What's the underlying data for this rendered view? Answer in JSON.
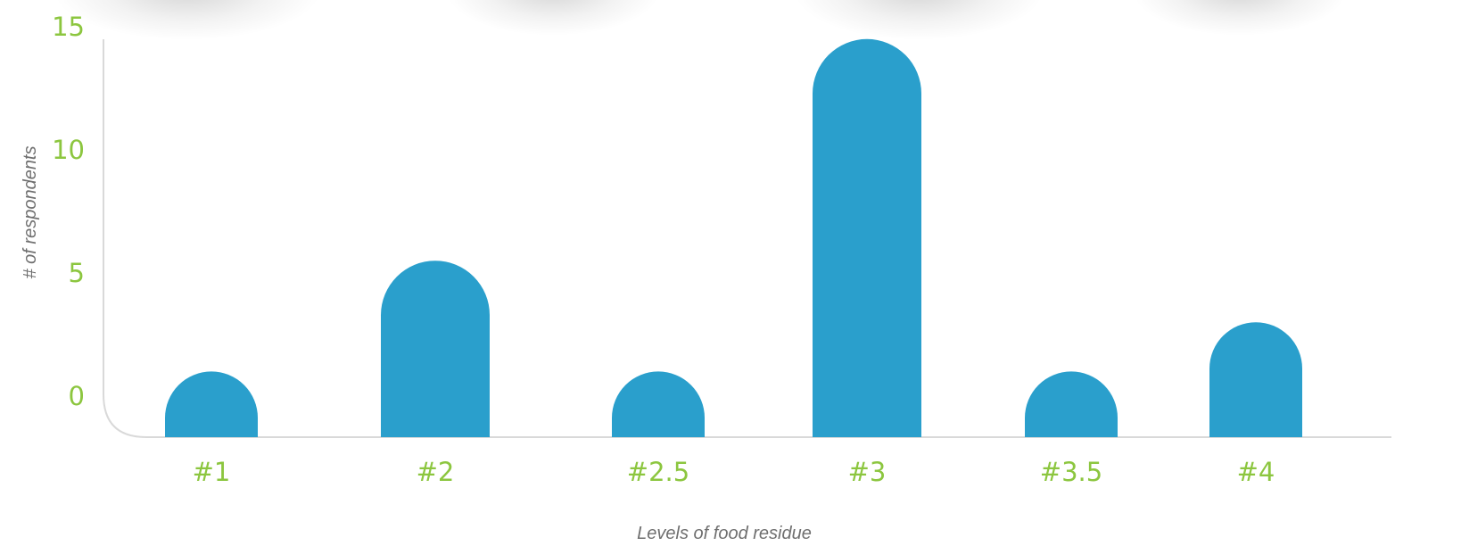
{
  "chart_data": {
    "type": "bar",
    "categories": [
      "#1",
      "#2",
      "#2.5",
      "#3",
      "#3.5",
      "#4"
    ],
    "values": [
      1,
      5.5,
      1,
      14.5,
      1,
      3
    ],
    "xlabel": "Levels of food residue",
    "ylabel": "# of respondents",
    "ylim": [
      0,
      15
    ],
    "yticks": [
      0,
      5,
      10,
      15
    ],
    "grid": false,
    "colors": {
      "bar": "#2a9fcc",
      "tick_text": "#8cc63f",
      "axis_line": "#d9d9d9",
      "title_text": "#6f6f6f"
    }
  }
}
